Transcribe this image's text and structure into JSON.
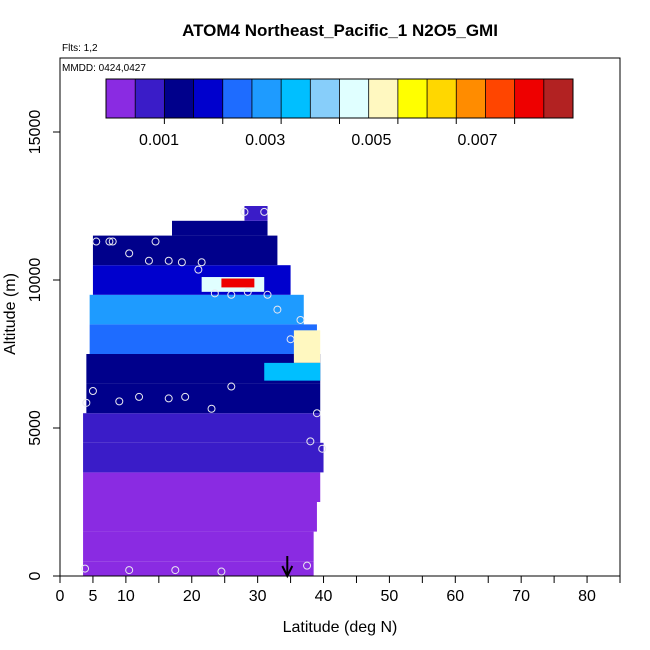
{
  "chart_data": {
    "type": "heatmap",
    "title": "ATOM4 Northeast_Pacific_1 N2O5_GMI",
    "flights_note": "Flts: 1,2",
    "date_note": "MMDD: 0424,0427",
    "xlabel": "Latitude (deg N)",
    "ylabel": "Altitude (m)",
    "xlim": [
      0,
      85
    ],
    "ylim": [
      0,
      17500
    ],
    "x_ticks": [
      0,
      5,
      10,
      20,
      30,
      40,
      50,
      60,
      70,
      80
    ],
    "x_minor_ticks": [
      15,
      25,
      35,
      45,
      55,
      65,
      75,
      85
    ],
    "y_ticks": [
      0,
      5000,
      10000,
      15000
    ],
    "grid": false,
    "colorbar": {
      "position": "top, inside plot",
      "range": [
        0,
        0.0088
      ],
      "tick_values": [
        0.001,
        0.003,
        0.005,
        0.007
      ],
      "tick_labels": [
        "0.001",
        "0.003",
        "0.005",
        "0.007"
      ],
      "colors": [
        "#8a2be2",
        "#3a1cc8",
        "#00008b",
        "#0000cd",
        "#1e6cff",
        "#1e9bff",
        "#00bfff",
        "#87cefa",
        "#e0ffff",
        "#fff8c0",
        "#ffff00",
        "#ffd700",
        "#ff8c00",
        "#ff4500",
        "#ee0000",
        "#b22222"
      ]
    },
    "curtain": [
      {
        "alt": [
          0,
          500
        ],
        "lat": [
          3.5,
          38.5
        ],
        "value": 5e-05
      },
      {
        "alt": [
          500,
          1500
        ],
        "lat": [
          3.5,
          38.5
        ],
        "value": 0.0001
      },
      {
        "alt": [
          1500,
          2500
        ],
        "lat": [
          3.5,
          39.0
        ],
        "value": 0.0002
      },
      {
        "alt": [
          2500,
          3500
        ],
        "lat": [
          3.5,
          39.5
        ],
        "value": 0.0004
      },
      {
        "alt": [
          3500,
          4500
        ],
        "lat": [
          3.5,
          40.0
        ],
        "value": 0.0006
      },
      {
        "alt": [
          4500,
          5500
        ],
        "lat": [
          3.5,
          39.5
        ],
        "value": 0.001
      },
      {
        "alt": [
          5500,
          6500
        ],
        "lat": [
          4.0,
          39.5
        ],
        "value": 0.0015
      },
      {
        "alt": [
          6500,
          7500
        ],
        "lat": [
          4.0,
          39.5
        ],
        "value": 0.0012
      },
      {
        "alt": [
          7500,
          8500
        ],
        "lat": [
          4.5,
          39.0
        ],
        "value": 0.0025
      },
      {
        "alt": [
          8500,
          9500
        ],
        "lat": [
          4.5,
          37.0
        ],
        "value": 0.0028
      },
      {
        "alt": [
          9500,
          10500
        ],
        "lat": [
          5.0,
          35.0
        ],
        "value": 0.002
      },
      {
        "alt": [
          10500,
          11500
        ],
        "lat": [
          5.0,
          33.0
        ],
        "value": 0.0012
      },
      {
        "alt": [
          11500,
          12000
        ],
        "lat": [
          17.0,
          31.5
        ],
        "value": 0.0011
      },
      {
        "alt": [
          12000,
          12500
        ],
        "lat": [
          28.0,
          31.5
        ],
        "value": 0.0009
      }
    ],
    "hot_spots": [
      {
        "lat": [
          21.5,
          31.0
        ],
        "alt": [
          9600,
          10100
        ],
        "value": 0.0045
      },
      {
        "lat": [
          24.5,
          29.5
        ],
        "alt": [
          9750,
          10050
        ],
        "value": 0.0078
      },
      {
        "lat": [
          35.5,
          39.5
        ],
        "alt": [
          7200,
          8300
        ],
        "value": 0.0053
      },
      {
        "lat": [
          31.0,
          39.5
        ],
        "alt": [
          6600,
          7200
        ],
        "value": 0.0038
      }
    ],
    "flight_points": [
      {
        "lat": 3.8,
        "alt": 250
      },
      {
        "lat": 10.5,
        "alt": 200
      },
      {
        "lat": 17.5,
        "alt": 200
      },
      {
        "lat": 24.5,
        "alt": 150
      },
      {
        "lat": 37.5,
        "alt": 350
      },
      {
        "lat": 4.0,
        "alt": 5850
      },
      {
        "lat": 5.0,
        "alt": 6250
      },
      {
        "lat": 9.0,
        "alt": 5900
      },
      {
        "lat": 12.0,
        "alt": 6050
      },
      {
        "lat": 16.5,
        "alt": 6000
      },
      {
        "lat": 19.0,
        "alt": 6050
      },
      {
        "lat": 23.0,
        "alt": 5650
      },
      {
        "lat": 26.0,
        "alt": 6400
      },
      {
        "lat": 38.0,
        "alt": 4550
      },
      {
        "lat": 39.0,
        "alt": 5500
      },
      {
        "lat": 39.8,
        "alt": 4300
      },
      {
        "lat": 5.5,
        "alt": 11300
      },
      {
        "lat": 7.5,
        "alt": 11300
      },
      {
        "lat": 8.0,
        "alt": 11300
      },
      {
        "lat": 14.5,
        "alt": 11300
      },
      {
        "lat": 10.5,
        "alt": 10900
      },
      {
        "lat": 13.5,
        "alt": 10650
      },
      {
        "lat": 16.5,
        "alt": 10650
      },
      {
        "lat": 18.5,
        "alt": 10600
      },
      {
        "lat": 21.5,
        "alt": 10600
      },
      {
        "lat": 21.0,
        "alt": 10350
      },
      {
        "lat": 28.0,
        "alt": 12300
      },
      {
        "lat": 31.0,
        "alt": 12300
      },
      {
        "lat": 23.5,
        "alt": 9550
      },
      {
        "lat": 26.0,
        "alt": 9500
      },
      {
        "lat": 28.5,
        "alt": 9600
      },
      {
        "lat": 31.5,
        "alt": 9500
      },
      {
        "lat": 33.0,
        "alt": 9000
      },
      {
        "lat": 36.5,
        "alt": 8650
      },
      {
        "lat": 35.0,
        "alt": 8000
      }
    ],
    "arrow_lat": 34.5
  }
}
